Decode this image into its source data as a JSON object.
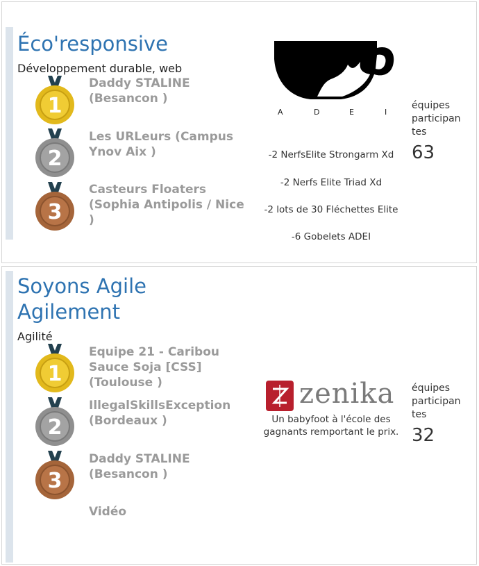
{
  "challenges": [
    {
      "title": "Éco'responsive",
      "category": "Développement durable, web",
      "winners": [
        {
          "rank": "1",
          "team": "Daddy STALINE (Besancon )"
        },
        {
          "rank": "2",
          "team": "Les URLeurs (Campus Ynov Aix )"
        },
        {
          "rank": "3",
          "team": "Casteurs Floaters (Sophia Antipolis / Nice )"
        }
      ],
      "sponsor": {
        "name": "ADEI",
        "letters": [
          "A",
          "D",
          "E",
          "I"
        ]
      },
      "prizes": [
        "-2 NerfsElite Strongarm Xd",
        "-2 Nerfs Elite Triad Xd",
        "-2 lots de 30 Fléchettes Elite",
        "-6 Gobelets ADEI"
      ],
      "teams_label": "équipes participan tes",
      "teams_count": "63"
    },
    {
      "title": "Soyons Agile Agilement",
      "category": "Agilité",
      "winners": [
        {
          "rank": "1",
          "team": "Equipe 21 - Caribou Sauce Soja [CSS] (Toulouse )"
        },
        {
          "rank": "2",
          "team": "IllegalSkillsException (Bordeaux )"
        },
        {
          "rank": "3",
          "team": "Daddy STALINE (Besancon )"
        }
      ],
      "video_label": "Vidéo",
      "sponsor": {
        "name": "zenika",
        "logo_glyph": "Z"
      },
      "prize_text": "Un babyfoot à l'école des gagnants remportant le prix.",
      "teams_label": "équipes participan tes",
      "teams_count": "32"
    }
  ],
  "colors": {
    "title": "#2e73b1",
    "team_text": "#9a9a9a",
    "accent_bar": "#dce4ec",
    "gold": "#e2b91c",
    "silver": "#8f8f8f",
    "bronze": "#a5653a",
    "ribbon": "#23414f",
    "zenika_red": "#b81f2d"
  }
}
